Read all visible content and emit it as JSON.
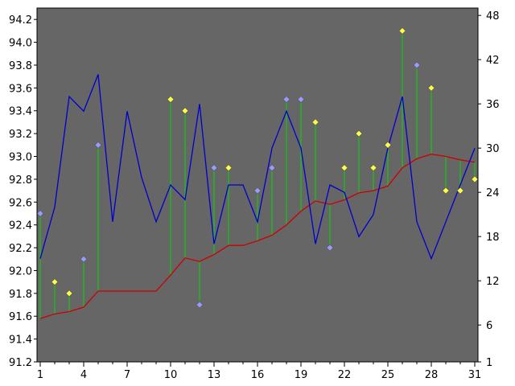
{
  "chart_data": {
    "type": "line",
    "title": "",
    "xlabel": "",
    "ylabel": "",
    "x": [
      1,
      2,
      3,
      4,
      5,
      6,
      7,
      8,
      9,
      10,
      11,
      12,
      13,
      14,
      15,
      16,
      17,
      18,
      19,
      20,
      21,
      22,
      23,
      24,
      25,
      26,
      27,
      28,
      29,
      30,
      31
    ],
    "xticks": [
      1,
      4,
      7,
      10,
      13,
      16,
      19,
      22,
      25,
      28,
      31
    ],
    "xlim": [
      1,
      31
    ],
    "ylim_left": [
      91.2,
      94.3
    ],
    "yticks_left": [
      "91.2",
      "91.4",
      "91.6",
      "91.8",
      "92.0",
      "92.2",
      "92.4",
      "92.6",
      "92.8",
      "93.0",
      "93.2",
      "93.4",
      "93.6",
      "93.8",
      "94.0",
      "94.2"
    ],
    "ylim_right": [
      1,
      49
    ],
    "yticks_right": [
      "1",
      "6",
      "12",
      "18",
      "24",
      "30",
      "36",
      "42",
      "48"
    ],
    "grid": false,
    "background": "#666666",
    "series": [
      {
        "kind": "line",
        "axis": "right",
        "color": "#0000cc",
        "values": [
          15,
          22,
          37,
          35,
          40,
          20,
          35,
          26,
          20,
          25,
          23,
          36,
          17,
          25,
          25,
          20,
          30,
          35,
          30,
          17,
          25,
          24,
          18,
          21,
          30,
          37,
          20,
          15,
          20,
          25,
          30
        ]
      },
      {
        "kind": "line",
        "axis": "left",
        "color": "#cc0000",
        "values": [
          91.58,
          91.62,
          91.64,
          91.68,
          91.82,
          91.82,
          91.82,
          91.82,
          91.82,
          91.96,
          92.11,
          92.08,
          92.14,
          92.22,
          92.22,
          92.26,
          92.31,
          92.4,
          92.52,
          92.61,
          92.58,
          92.62,
          92.68,
          92.7,
          92.74,
          92.9,
          92.98,
          93.02,
          93.0,
          92.97,
          92.95
        ]
      },
      {
        "kind": "markers",
        "axis": "left",
        "color": "#ffff44",
        "values": [
          null,
          91.9,
          91.8,
          null,
          null,
          null,
          null,
          null,
          null,
          93.5,
          93.4,
          null,
          null,
          92.9,
          null,
          null,
          null,
          null,
          null,
          93.3,
          null,
          92.9,
          93.2,
          92.9,
          93.1,
          94.1,
          null,
          93.6,
          92.7,
          92.7,
          92.8
        ]
      },
      {
        "kind": "markers",
        "axis": "left",
        "color": "#9999ff",
        "values": [
          92.5,
          null,
          null,
          92.1,
          93.1,
          null,
          null,
          null,
          null,
          null,
          null,
          91.7,
          92.9,
          null,
          null,
          92.7,
          92.9,
          93.5,
          93.5,
          null,
          92.2,
          null,
          null,
          null,
          null,
          null,
          93.8,
          null,
          null,
          null,
          null
        ]
      }
    ],
    "drop_line_color": "#00dd00"
  }
}
